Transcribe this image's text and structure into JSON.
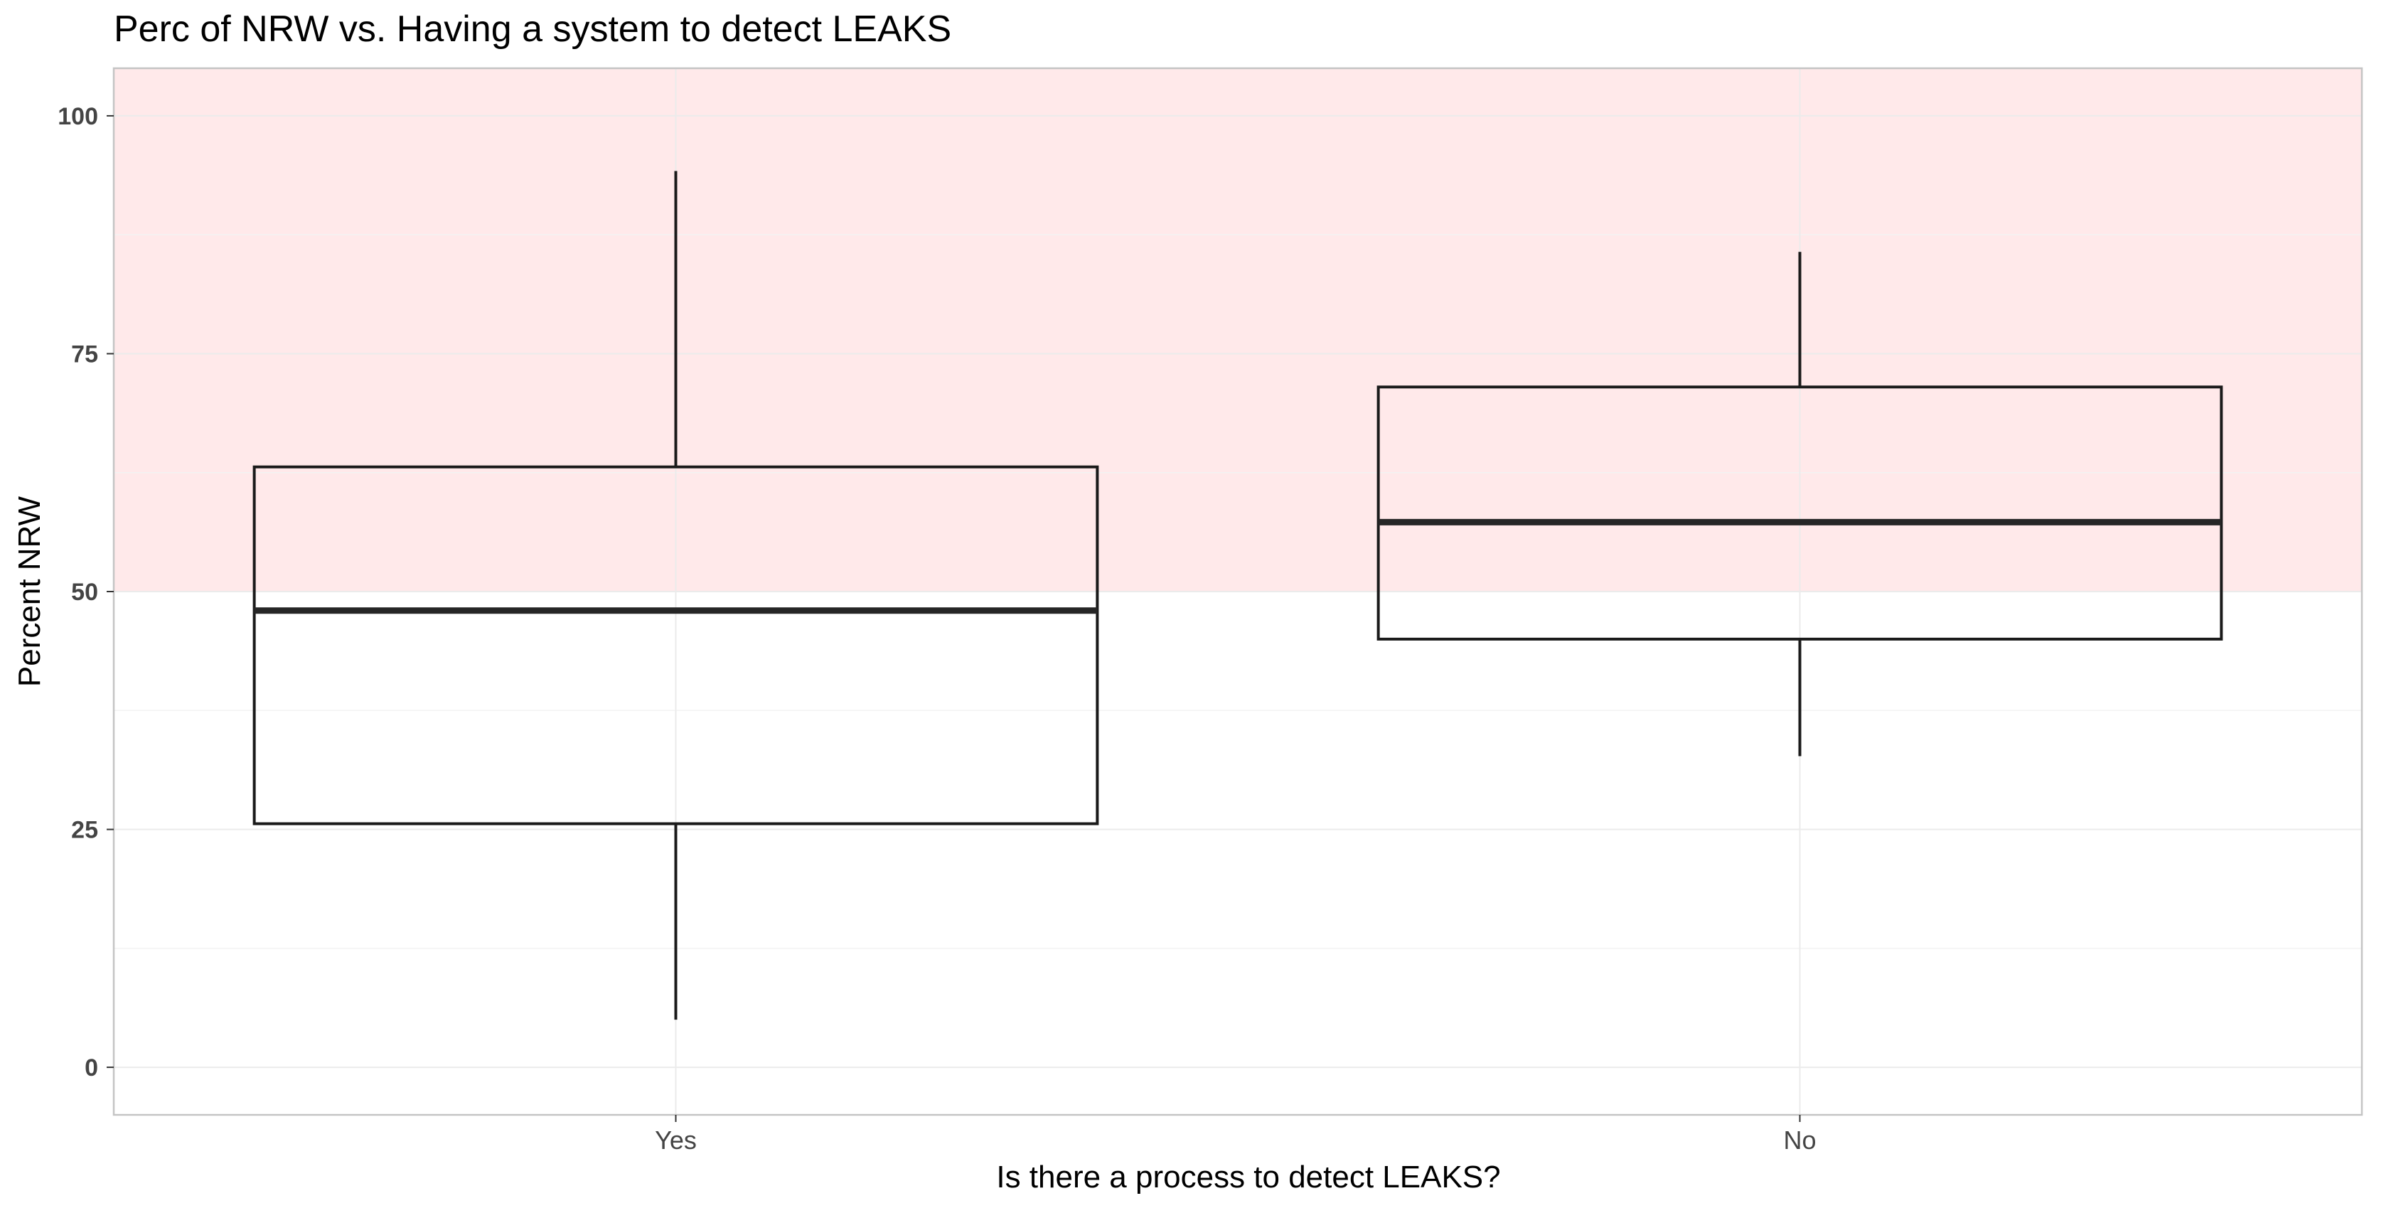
{
  "chart_data": {
    "type": "boxplot",
    "title": "Perc of NRW vs. Having a system to detect LEAKS",
    "xlabel": "Is there a process to detect LEAKS?",
    "ylabel": "Percent NRW",
    "categories": [
      "Yes",
      "No"
    ],
    "boxes": [
      {
        "category": "Yes",
        "lower_whisker": 5,
        "q1": 25.6,
        "median": 48.0,
        "q3": 63.1,
        "upper_whisker": 94.2
      },
      {
        "category": "No",
        "lower_whisker": 32.7,
        "q1": 45.0,
        "median": 57.3,
        "q3": 71.5,
        "upper_whisker": 85.7
      }
    ],
    "ylim": [
      -5,
      105
    ],
    "yticks": [
      0,
      25,
      50,
      75,
      100
    ],
    "highlight_band": {
      "from": 50,
      "to": 105,
      "color": "#ffe9ea"
    },
    "grid": true,
    "colors": {
      "box_stroke": "#1a1a1a",
      "median": "#262626",
      "border": "#c4c4c4",
      "grid_major": "#ebebeb",
      "grid_minor": "#f3f3f3"
    }
  }
}
